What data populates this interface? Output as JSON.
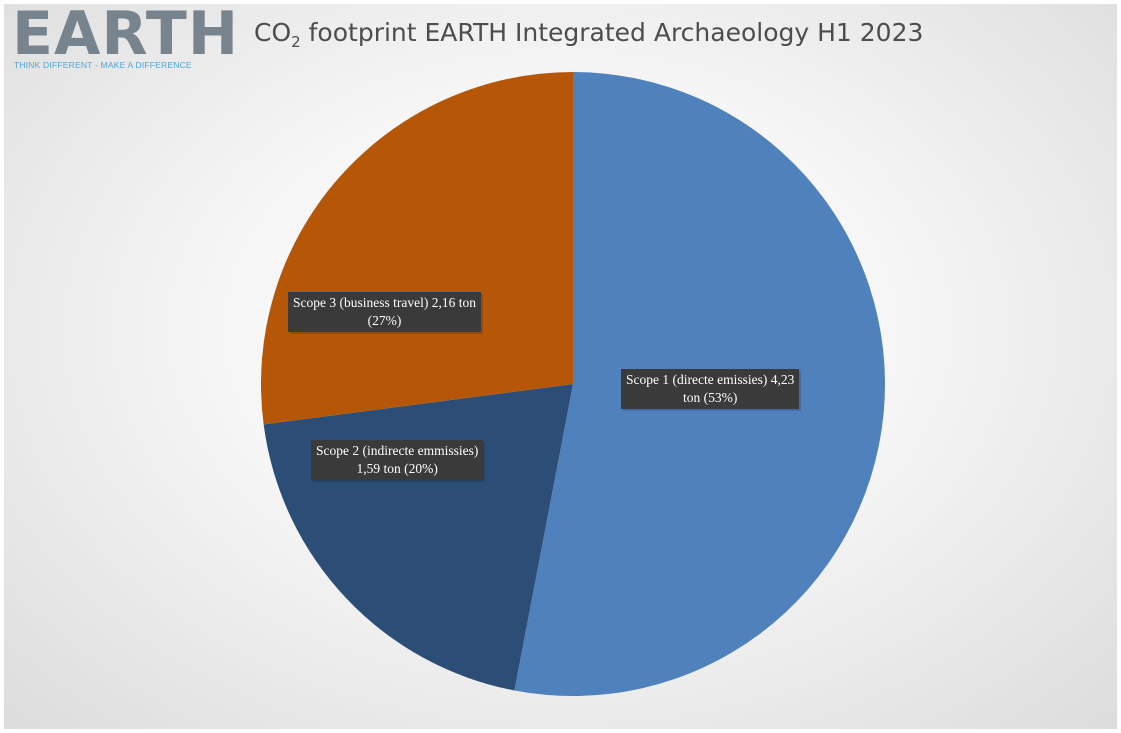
{
  "logo": {
    "word": "EARTH",
    "tagline": "THINK DIFFERENT - MAKE A DIFFERENCE"
  },
  "chart_data": {
    "type": "pie",
    "title_prefix": "CO",
    "title_subscript": "2",
    "title_rest": " footprint EARTH Integrated Archaeology H1 2023",
    "unit": "ton",
    "slices": [
      {
        "name": "Scope 1 (directe emissies)",
        "value": 4.23,
        "percent": 53,
        "color": "#4f81bd",
        "label_line1": "Scope 1 (directe emissies) 4,23",
        "label_line2": "ton (53%)"
      },
      {
        "name": "Scope 2 (indirecte emmissies)",
        "value": 1.59,
        "percent": 20,
        "color": "#2c4d75",
        "label_line1": "Scope 2 (indirecte emmissies)",
        "label_line2": "1,59 ton (20%)"
      },
      {
        "name": "Scope 3 (business travel)",
        "value": 2.16,
        "percent": 27,
        "color": "#b65708",
        "label_line1": "Scope 3 (business travel) 2,16 ton",
        "label_line2": "(27%)"
      }
    ]
  }
}
